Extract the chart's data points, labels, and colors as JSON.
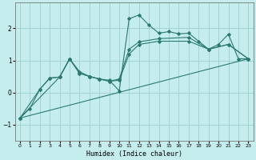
{
  "xlabel": "Humidex (Indice chaleur)",
  "xlim": [
    -0.5,
    23.5
  ],
  "ylim": [
    -1.5,
    2.8
  ],
  "background_color": "#c6eded",
  "grid_color": "#9ecece",
  "line_color": "#2a7a70",
  "yticks": [
    -1,
    0,
    1,
    2
  ],
  "xticks": [
    0,
    1,
    2,
    3,
    4,
    5,
    6,
    7,
    8,
    9,
    10,
    11,
    12,
    13,
    14,
    15,
    16,
    17,
    18,
    19,
    20,
    21,
    22,
    23
  ],
  "line1_x": [
    0,
    1,
    2,
    3,
    4,
    5,
    6,
    7,
    8,
    9,
    10,
    11,
    12,
    13,
    14,
    15,
    16,
    17,
    18,
    19,
    20,
    21,
    22,
    23
  ],
  "line1_y": [
    -0.8,
    -0.5,
    0.1,
    0.45,
    0.48,
    1.05,
    0.65,
    0.5,
    0.42,
    0.38,
    0.05,
    2.3,
    2.42,
    2.1,
    1.85,
    1.9,
    1.83,
    1.85,
    1.6,
    1.35,
    1.5,
    1.82,
    1.05,
    1.05
  ],
  "line2_x": [
    0,
    2,
    3,
    4,
    5,
    6,
    7,
    8,
    9,
    10,
    11,
    12,
    14,
    17,
    19,
    21,
    23
  ],
  "line2_y": [
    -0.8,
    0.1,
    0.45,
    0.48,
    1.05,
    0.6,
    0.5,
    0.42,
    0.35,
    0.38,
    1.2,
    1.5,
    1.6,
    1.6,
    1.35,
    1.5,
    1.05
  ],
  "line3_x": [
    0,
    23
  ],
  "line3_y": [
    -0.8,
    1.05
  ],
  "line4_x": [
    0,
    4,
    5,
    6,
    7,
    8,
    9,
    10,
    11,
    12,
    14,
    17,
    19,
    21,
    23
  ],
  "line4_y": [
    -0.8,
    0.48,
    1.05,
    0.6,
    0.5,
    0.42,
    0.35,
    0.42,
    1.35,
    1.58,
    1.68,
    1.72,
    1.35,
    1.5,
    1.05
  ]
}
